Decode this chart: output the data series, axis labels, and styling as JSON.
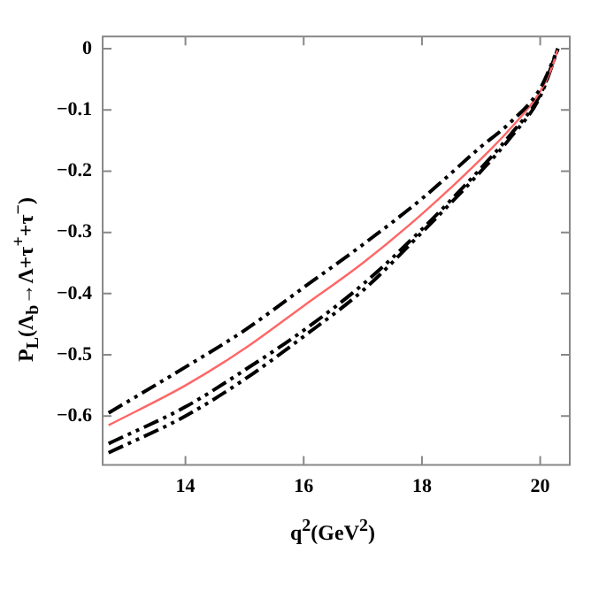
{
  "chart_data": {
    "type": "line",
    "xlabel": "q$^{2}$(GeV$^{2}$)",
    "ylabel": "P$_{L}$(Λ$_{b}$→Λ+τ$^{+}$+τ$^{−}$)",
    "xlim": [
      12.6,
      20.5
    ],
    "xticks": [
      14,
      16,
      18,
      20
    ],
    "ylim": [
      -0.68,
      0.02
    ],
    "yticks": [
      -0.6,
      -0.5,
      -0.4,
      -0.3,
      -0.2,
      -0.1,
      0
    ],
    "grid": false,
    "legend": false,
    "marker": "none",
    "series": [
      {
        "color": "#000000",
        "line_style": "dashed",
        "x": [
          12.7,
          14,
          15,
          16,
          17,
          18,
          19,
          19.5,
          20,
          20.3
        ],
        "values": [
          -0.595,
          -0.52,
          -0.46,
          -0.39,
          -0.32,
          -0.245,
          -0.16,
          -0.12,
          -0.065,
          0
        ]
      },
      {
        "color": "#ff6666",
        "line_style": "solid",
        "x": [
          12.7,
          14,
          15,
          16,
          17,
          18,
          19,
          19.5,
          20,
          20.2,
          20.3
        ],
        "values": [
          -0.615,
          -0.55,
          -0.49,
          -0.42,
          -0.35,
          -0.27,
          -0.18,
          -0.13,
          -0.07,
          -0.03,
          0
        ]
      },
      {
        "color": "#000000",
        "line_style": "dashed",
        "x": [
          12.7,
          14,
          15,
          16,
          17,
          18,
          19,
          19.5,
          20,
          20.3
        ],
        "values": [
          -0.645,
          -0.585,
          -0.525,
          -0.46,
          -0.385,
          -0.295,
          -0.195,
          -0.14,
          -0.075,
          0
        ]
      },
      {
        "color": "#000000",
        "line_style": "dashed",
        "x": [
          12.7,
          14,
          15,
          16,
          17,
          18,
          19,
          19.5,
          20,
          20.3
        ],
        "values": [
          -0.66,
          -0.6,
          -0.54,
          -0.47,
          -0.395,
          -0.3,
          -0.2,
          -0.145,
          -0.078,
          0
        ]
      }
    ]
  }
}
